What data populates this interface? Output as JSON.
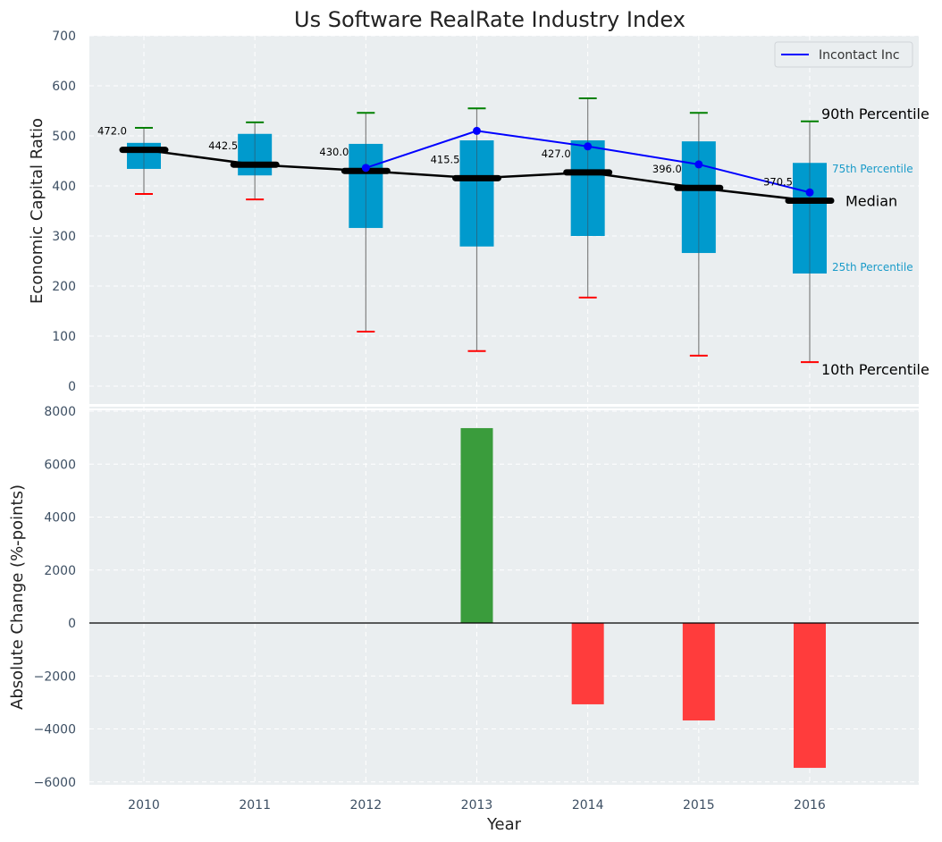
{
  "chart_data": [
    {
      "type": "box",
      "title": "Us Software RealRate Industry Index",
      "xlabel": "",
      "ylabel": "Economic Capital Ratio",
      "ylim": [
        0,
        700
      ],
      "yticks": [
        0,
        100,
        200,
        300,
        400,
        500,
        600,
        700
      ],
      "categories": [
        "2010",
        "2011",
        "2012",
        "2013",
        "2014",
        "2015",
        "2016"
      ],
      "grid": true,
      "percentiles": {
        "p10": [
          384,
          373,
          109,
          70,
          177,
          61,
          48
        ],
        "p25": [
          434,
          421,
          316,
          279,
          300,
          266,
          225
        ],
        "median": [
          472.0,
          442.5,
          430.0,
          415.5,
          427.0,
          396.0,
          370.5
        ],
        "p75": [
          486,
          504,
          484,
          491,
          491,
          489,
          446
        ],
        "p90": [
          516,
          527,
          546,
          555,
          575,
          546,
          529
        ]
      },
      "median_labels": [
        "472.0",
        "442.5",
        "430.0",
        "415.5",
        "427.0",
        "396.0",
        "370.5"
      ],
      "series": [
        {
          "name": "Incontact Inc",
          "color": "#0000ff",
          "x": [
            "2012",
            "2013",
            "2014",
            "2015",
            "2016"
          ],
          "values": [
            436,
            510,
            479,
            443,
            387
          ]
        }
      ],
      "legend": {
        "position": "top-right",
        "entries": [
          "Incontact Inc"
        ]
      },
      "annotations": {
        "p90": "90th Percentile",
        "p75": "75th Percentile",
        "median": "Median",
        "p25": "25th Percentile",
        "p10": "10th Percentile"
      },
      "colors": {
        "box": "#009acd",
        "median": "#000000",
        "p90_cap": "#008000",
        "p10_cap": "#ff0000",
        "whisker": "#808080",
        "background": "#eaeef0"
      }
    },
    {
      "type": "bar",
      "title": "",
      "xlabel": "Year",
      "ylabel": "Absolute Change (%-points)",
      "ylim": [
        -6000,
        8000
      ],
      "yticks": [
        -6000,
        -4000,
        -2000,
        0,
        2000,
        4000,
        6000,
        8000
      ],
      "ytick_labels": [
        "−6000",
        "−4000",
        "−2000",
        "0",
        "2000",
        "4000",
        "6000",
        "8000"
      ],
      "categories": [
        "2010",
        "2011",
        "2012",
        "2013",
        "2014",
        "2015",
        "2016"
      ],
      "values": [
        0,
        0,
        0,
        7360,
        -3070,
        -3680,
        -5470
      ],
      "colors": {
        "positive": "#3a9c3c",
        "negative": "#ff3c3c"
      },
      "grid": true
    }
  ]
}
